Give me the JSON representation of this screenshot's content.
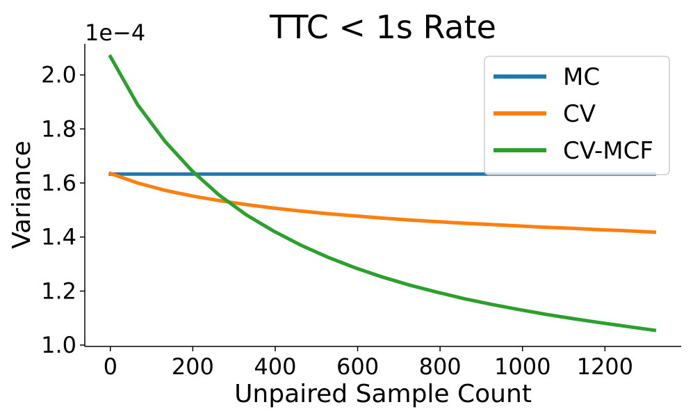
{
  "chart_data": {
    "type": "line",
    "title": "TTC < 1s Rate",
    "xlabel": "Unpaired Sample Count",
    "ylabel": "Variance",
    "y_offset_label": "1e−4",
    "xlim": [
      -62,
      1385
    ],
    "ylim": [
      0.995,
      2.115
    ],
    "xticks": [
      0,
      200,
      400,
      600,
      800,
      1000,
      1200
    ],
    "xtick_labels": [
      "0",
      "200",
      "400",
      "600",
      "800",
      "1000",
      "1200"
    ],
    "yticks": [
      1.0,
      1.2,
      1.4,
      1.6,
      1.8,
      2.0
    ],
    "ytick_labels": [
      "1.0",
      "1.2",
      "1.4",
      "1.6",
      "1.8",
      "2.0"
    ],
    "grid": false,
    "legend_position": "top-right",
    "x": [
      0,
      66,
      132,
      198,
      264,
      330,
      396,
      462,
      528,
      594,
      660,
      726,
      792,
      858,
      924,
      990,
      1056,
      1122,
      1188,
      1254,
      1320
    ],
    "series": [
      {
        "name": "MC",
        "color": "#1f77b4",
        "values": [
          1.633,
          1.633,
          1.633,
          1.633,
          1.633,
          1.633,
          1.633,
          1.633,
          1.633,
          1.633,
          1.633,
          1.633,
          1.633,
          1.633,
          1.633,
          1.633,
          1.633,
          1.633,
          1.633,
          1.633,
          1.633
        ]
      },
      {
        "name": "CV",
        "color": "#ff7f0e",
        "values": [
          1.635,
          1.6,
          1.573,
          1.552,
          1.535,
          1.52,
          1.507,
          1.496,
          1.486,
          1.478,
          1.47,
          1.463,
          1.457,
          1.451,
          1.446,
          1.441,
          1.436,
          1.432,
          1.427,
          1.423,
          1.418
        ]
      },
      {
        "name": "CV-MCF",
        "color": "#2ca02c",
        "values": [
          2.068,
          1.89,
          1.755,
          1.645,
          1.555,
          1.482,
          1.422,
          1.37,
          1.325,
          1.286,
          1.252,
          1.222,
          1.196,
          1.172,
          1.151,
          1.132,
          1.114,
          1.098,
          1.083,
          1.069,
          1.055
        ]
      }
    ]
  }
}
